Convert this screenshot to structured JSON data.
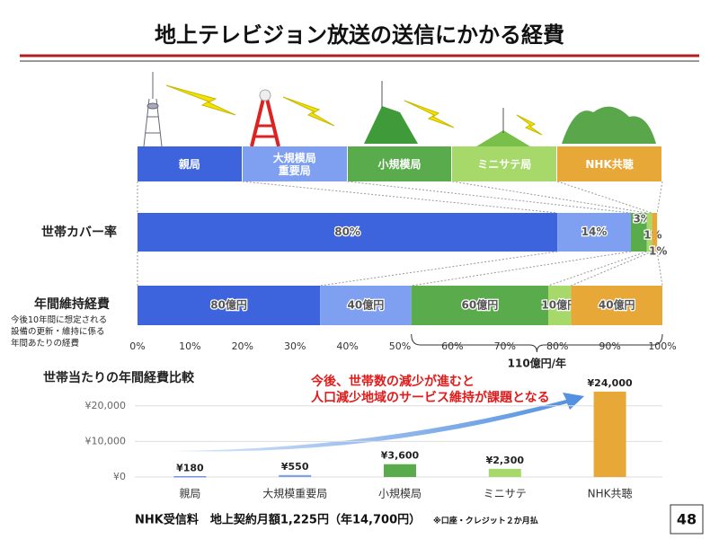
{
  "title": "地上テレビジョン放送の送信にかかる経費",
  "chart_data": [
    {
      "type": "stacked_bar_h",
      "label": "世帯カバー率",
      "categories": [
        "親局",
        "大規模局\n重要局",
        "小規模局",
        "ミニサテ局",
        "NHK共聴"
      ],
      "colors": [
        "#3d63dd",
        "#7fa0f0",
        "#5aab4c",
        "#a6d86a",
        "#e8a838"
      ],
      "values": [
        80,
        14,
        3,
        1,
        1
      ],
      "value_labels": [
        "80%",
        "14%",
        "3%",
        "1%",
        "1%"
      ],
      "xlim": [
        0,
        100
      ],
      "xticks": [
        {
          "value": 0,
          "label": "0%"
        },
        {
          "value": 10,
          "label": "10%"
        },
        {
          "value": 20,
          "label": "20%"
        },
        {
          "value": 30,
          "label": "30%"
        },
        {
          "value": 40,
          "label": "40%"
        },
        {
          "value": 50,
          "label": "50%"
        },
        {
          "value": 60,
          "label": "60%"
        },
        {
          "value": 70,
          "label": "70%"
        },
        {
          "value": 80,
          "label": "80%"
        },
        {
          "value": 90,
          "label": "90%"
        },
        {
          "value": 100,
          "label": "100%"
        }
      ]
    },
    {
      "type": "stacked_share_h",
      "label": "年間維持経費",
      "note": "今後10年間に想定される\n設備の更新・維持に係る\n年間あたりの経費",
      "colors": [
        "#3d63dd",
        "#7fa0f0",
        "#5aab4c",
        "#a6d86a",
        "#e8a838"
      ],
      "values": [
        80,
        40,
        60,
        10,
        40
      ],
      "value_labels": [
        "80億円",
        "40億円",
        "60億円",
        "10億円",
        "40億円"
      ],
      "annotation": "110億円/年"
    },
    {
      "type": "bar",
      "title": "世帯当たりの年間経費比較",
      "categories": [
        "親局",
        "大規模重要局",
        "小規模局",
        "ミニサテ",
        "NHK共聴"
      ],
      "colors": [
        "#3d63dd",
        "#7fa0f0",
        "#5aab4c",
        "#a6d86a",
        "#e8a838"
      ],
      "values": [
        180,
        550,
        3600,
        2300,
        24000
      ],
      "value_labels": [
        "¥180",
        "¥550",
        "¥3,600",
        "¥2,300",
        "¥24,000"
      ],
      "ylim": [
        0,
        25000
      ],
      "yticks": [
        {
          "value": 0,
          "label": "¥0"
        },
        {
          "value": 10000,
          "label": "¥10,000"
        },
        {
          "value": 20000,
          "label": "¥20,000"
        }
      ],
      "grid": true,
      "annotation": "今後、世帯数の減少が進むと\n人口減少地域のサービス維持が課題となる"
    }
  ],
  "footer": {
    "text": "NHK受信料　地上契約月額1,225円（年14,700円）",
    "note": "※口座・クレジット２か月払"
  },
  "page": "48"
}
